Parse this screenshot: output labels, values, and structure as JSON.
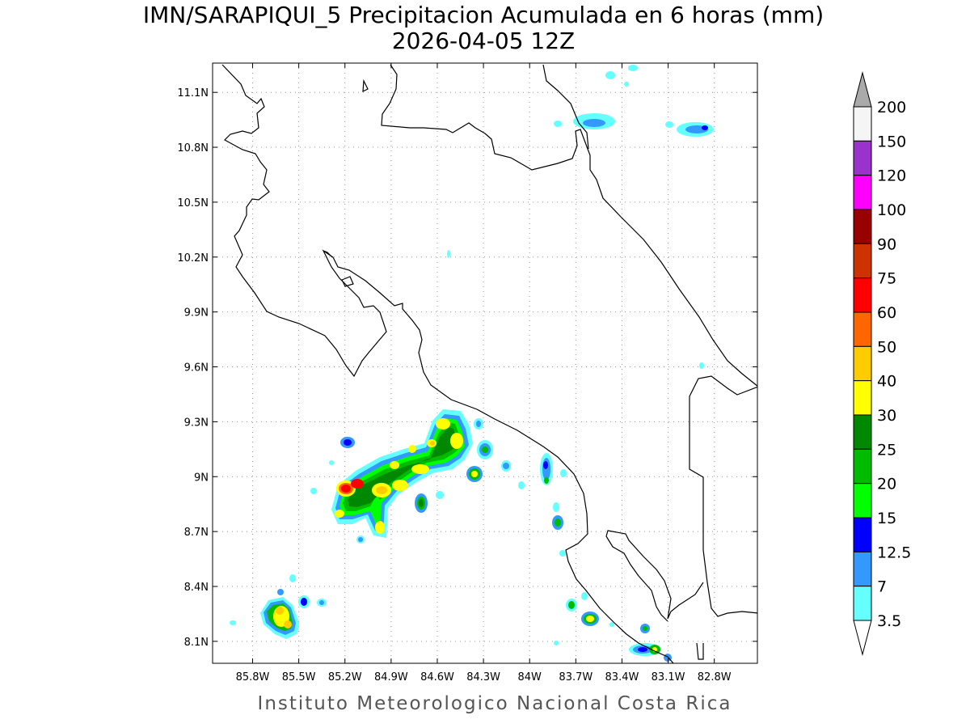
{
  "title": {
    "line1": "IMN/SARAPIQUI_5 Precipitacion Acumulada en 6 horas (mm)",
    "line2": "2026-04-05 12Z"
  },
  "credit": "Instituto Meteorologico Nacional Costa Rica",
  "map": {
    "lon_range": [
      -86.06,
      -82.52
    ],
    "lat_range": [
      7.98,
      11.26
    ],
    "lon_ticks": [
      {
        "value": -85.8,
        "label": "85.8W"
      },
      {
        "value": -85.5,
        "label": "85.5W"
      },
      {
        "value": -85.2,
        "label": "85.2W"
      },
      {
        "value": -84.9,
        "label": "84.9W"
      },
      {
        "value": -84.6,
        "label": "84.6W"
      },
      {
        "value": -84.3,
        "label": "84.3W"
      },
      {
        "value": -84.0,
        "label": "84W"
      },
      {
        "value": -83.7,
        "label": "83.7W"
      },
      {
        "value": -83.4,
        "label": "83.4W"
      },
      {
        "value": -83.1,
        "label": "83.1W"
      },
      {
        "value": -82.8,
        "label": "82.8W"
      }
    ],
    "lat_ticks": [
      {
        "value": 11.1,
        "label": "11.1N"
      },
      {
        "value": 10.8,
        "label": "10.8N"
      },
      {
        "value": 10.5,
        "label": "10.5N"
      },
      {
        "value": 10.2,
        "label": "10.2N"
      },
      {
        "value": 9.9,
        "label": "9.9N"
      },
      {
        "value": 9.6,
        "label": "9.6N"
      },
      {
        "value": 9.3,
        "label": "9.3N"
      },
      {
        "value": 9.0,
        "label": "9N"
      },
      {
        "value": 8.7,
        "label": "8.7N"
      },
      {
        "value": 8.4,
        "label": "8.4N"
      },
      {
        "value": 8.1,
        "label": "8.1N"
      }
    ],
    "grid": true
  },
  "colorbar": {
    "levels": [
      {
        "label": "200",
        "color": "#aaaaaa"
      },
      {
        "label": "150",
        "color": "#f5f5f5"
      },
      {
        "label": "120",
        "color": "#9933cc"
      },
      {
        "label": "100",
        "color": "#ff00ff"
      },
      {
        "label": "90",
        "color": "#990000"
      },
      {
        "label": "75",
        "color": "#cc3300"
      },
      {
        "label": "60",
        "color": "#ff0000"
      },
      {
        "label": "50",
        "color": "#ff6600"
      },
      {
        "label": "40",
        "color": "#ffcc00"
      },
      {
        "label": "30",
        "color": "#ffff00"
      },
      {
        "label": "25",
        "color": "#008800"
      },
      {
        "label": "20",
        "color": "#00bb00"
      },
      {
        "label": "15",
        "color": "#00ff00"
      },
      {
        "label": "12.5",
        "color": "#0000ff"
      },
      {
        "label": "7",
        "color": "#3399ff"
      },
      {
        "label": "3.5",
        "color": "#66ffff"
      }
    ]
  }
}
